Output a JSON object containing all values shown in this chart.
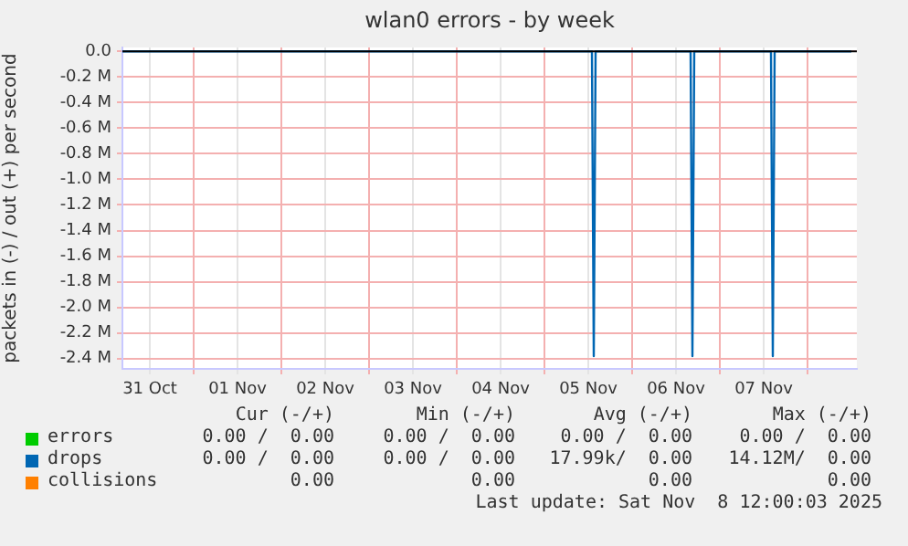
{
  "chart_data": {
    "type": "line",
    "title": "wlan0 errors - by week",
    "ylabel": "packets in (-) / out (+) per second",
    "xlim": [
      "2025-10-31T04:30",
      "2025-11-08T13:30"
    ],
    "xticks": [
      {
        "value": "2025-11-01T00:00",
        "label": null
      },
      {
        "value": "2025-11-02T00:00",
        "label": null
      },
      {
        "value": "2025-11-03T00:00",
        "label": null
      },
      {
        "value": "2025-11-04T00:00",
        "label": null
      },
      {
        "value": "2025-11-05T00:00",
        "label": null
      },
      {
        "value": "2025-11-06T00:00",
        "label": null
      },
      {
        "value": "2025-11-07T00:00",
        "label": null
      },
      {
        "value": "2025-11-08T00:00",
        "label": null
      },
      {
        "value": "2025-10-31T12:00",
        "label": "31 Oct"
      },
      {
        "value": "2025-11-01T12:00",
        "label": "01 Nov"
      },
      {
        "value": "2025-11-02T12:00",
        "label": "02 Nov"
      },
      {
        "value": "2025-11-03T12:00",
        "label": "03 Nov"
      },
      {
        "value": "2025-11-04T12:00",
        "label": "04 Nov"
      },
      {
        "value": "2025-11-05T12:00",
        "label": "05 Nov"
      },
      {
        "value": "2025-11-06T12:00",
        "label": "06 Nov"
      },
      {
        "value": "2025-11-07T12:00",
        "label": "07 Nov"
      }
    ],
    "ylim": [
      -2.48,
      0.03
    ],
    "yticks": [
      {
        "value": 0,
        "label": "0.0"
      },
      {
        "value": -0.2,
        "label": "-0.2 M"
      },
      {
        "value": -0.4,
        "label": "-0.4 M"
      },
      {
        "value": -0.6,
        "label": "-0.6 M"
      },
      {
        "value": -0.8,
        "label": "-0.8 M"
      },
      {
        "value": -1.0,
        "label": "-1.0 M"
      },
      {
        "value": -1.2,
        "label": "-1.2 M"
      },
      {
        "value": -1.4,
        "label": "-1.4 M"
      },
      {
        "value": -1.6,
        "label": "-1.6 M"
      },
      {
        "value": -1.8,
        "label": "-1.8 M"
      },
      {
        "value": -2.0,
        "label": "-2.0 M"
      },
      {
        "value": -2.2,
        "label": "-2.2 M"
      },
      {
        "value": -2.4,
        "label": "-2.4 M"
      }
    ],
    "grid": true,
    "legend": "bottom left",
    "marker": "none",
    "ref_lines": [
      {
        "axis": "y",
        "value": 0,
        "color": "#000000"
      }
    ],
    "series": [
      {
        "name": "errors",
        "color": "#00cc00"
      },
      {
        "name": "drops",
        "color": "#0066b3",
        "x": [
          "2025-10-31T04:30",
          "2025-11-05T13:00",
          "2025-11-05T13:30",
          "2025-11-05T14:00",
          "2025-11-06T16:00",
          "2025-11-06T16:30",
          "2025-11-06T17:00",
          "2025-11-07T14:00",
          "2025-11-07T14:30",
          "2025-11-07T15:00",
          "2025-11-08T12:00"
        ],
        "values": [
          0,
          0,
          -2.38,
          0,
          0,
          -2.38,
          0,
          0,
          -2.38,
          0,
          0
        ]
      },
      {
        "name": "collisions",
        "color": "#ff8000"
      }
    ],
    "annotations": [
      "Cur (-/+)",
      "Min (-/+)",
      "Avg (-/+)",
      "Max (-/+)",
      "0.00 /  0.00",
      "0.00 /  0.00",
      "0.00 /  0.00",
      "0.00 /  0.00",
      "0.00 /  0.00",
      "0.00 /  0.00",
      "17.99k/  0.00",
      "14.12M/  0.00",
      "0.00",
      "0.00",
      "0.00",
      "0.00",
      "Last update: Sat Nov  8 12:00:03 2025"
    ]
  }
}
